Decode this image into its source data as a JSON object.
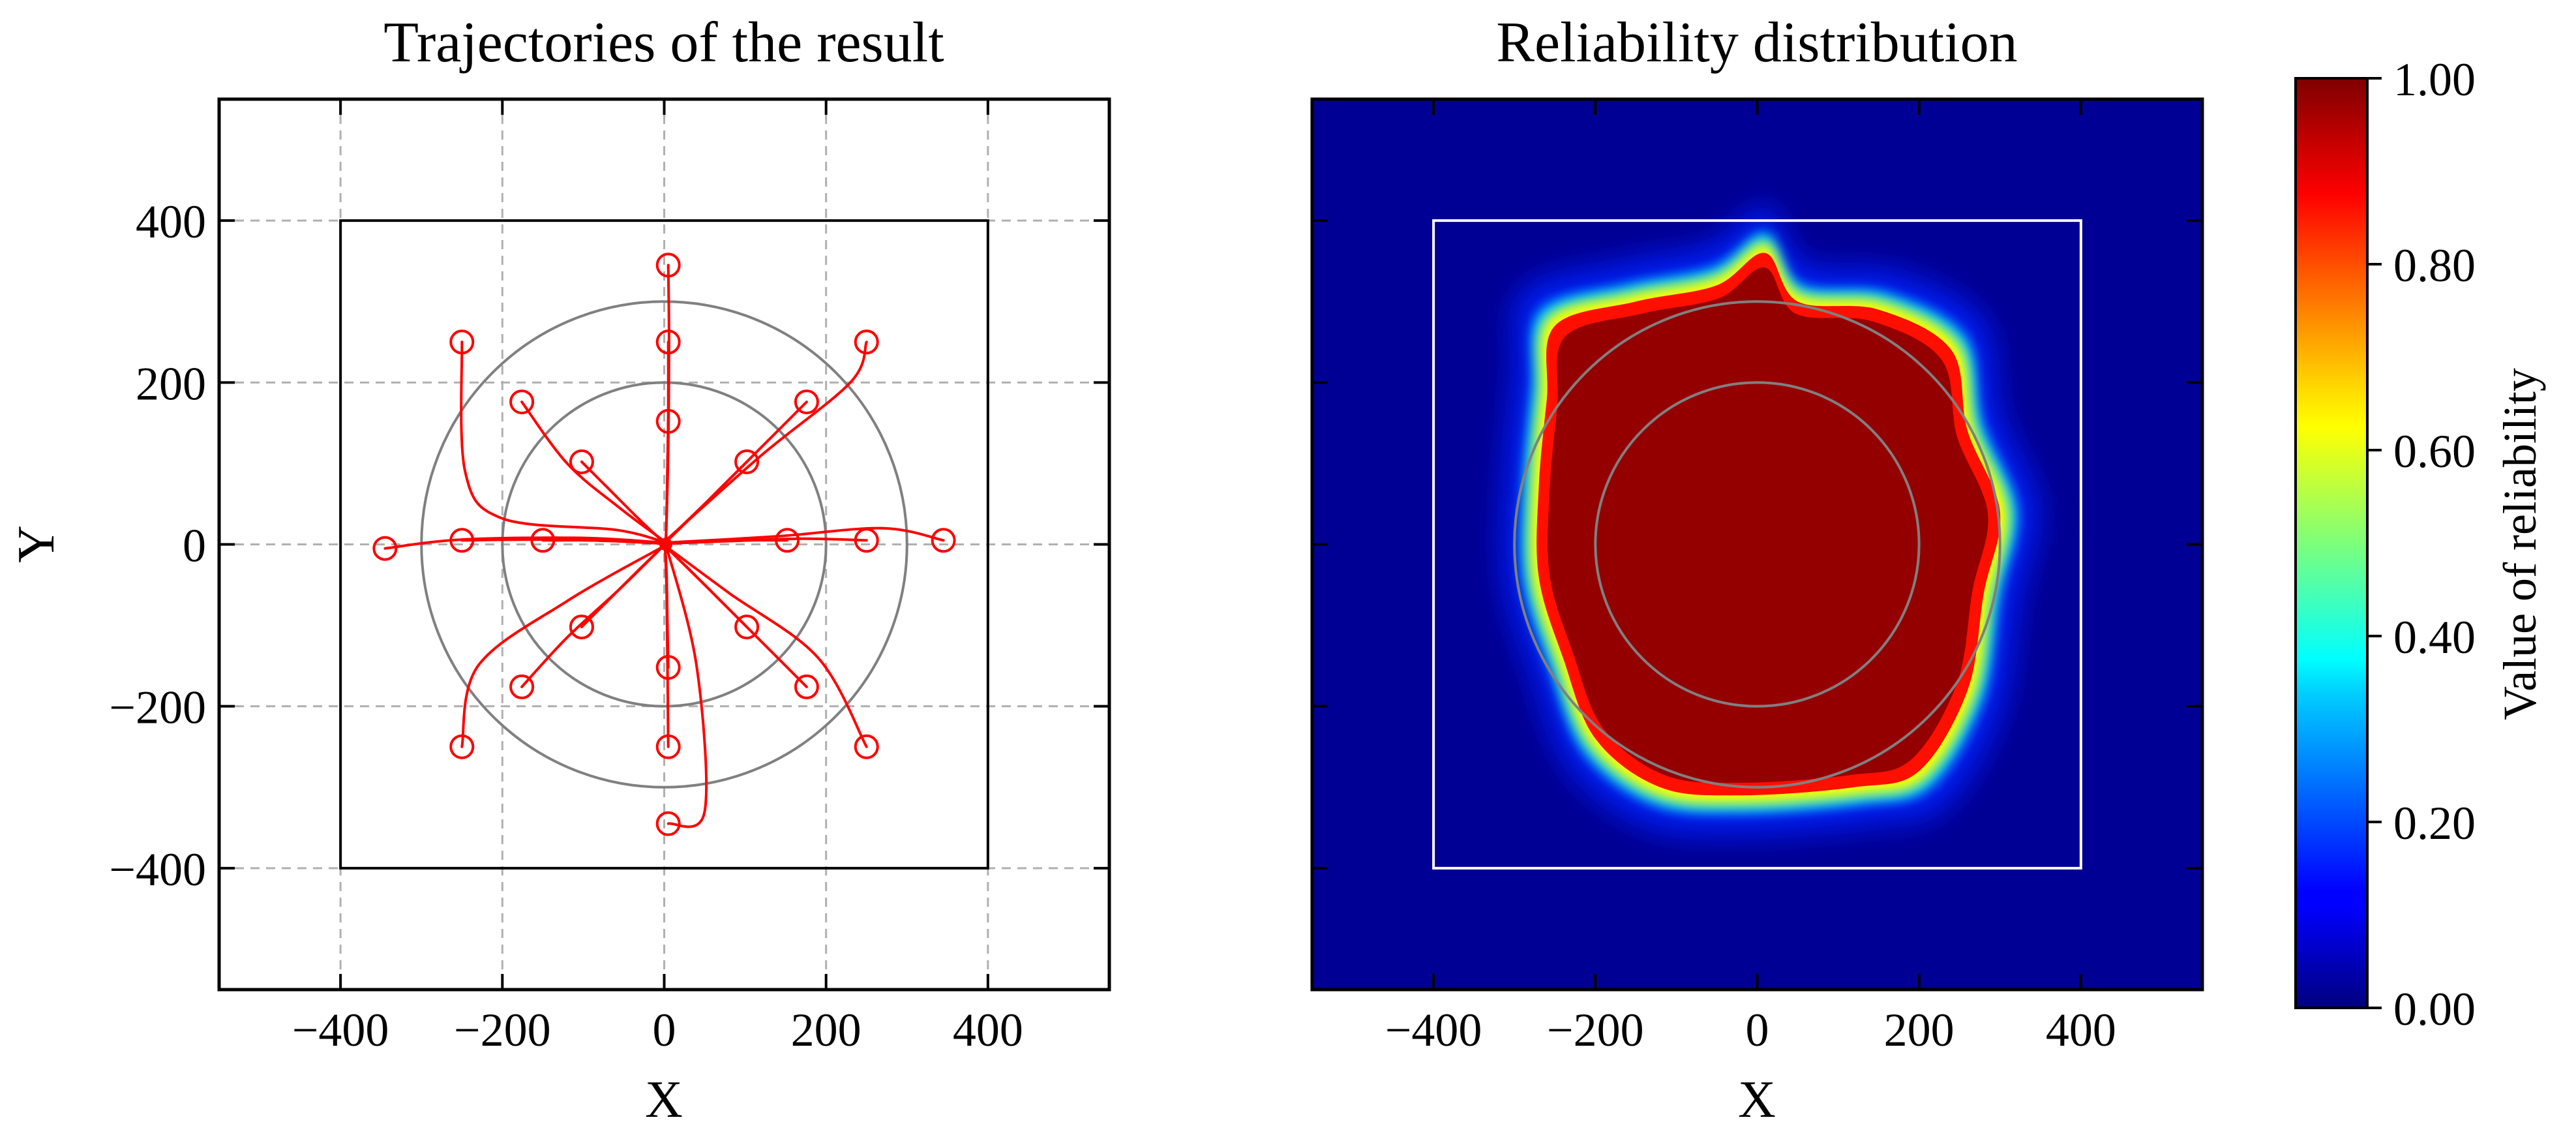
{
  "chart_data": [
    {
      "type": "line",
      "title": "Trajectories of the result",
      "xlabel": "X",
      "ylabel": "Y",
      "xlim": [
        -550,
        550
      ],
      "ylim": [
        -550,
        550
      ],
      "xticks": [
        -400,
        -200,
        0,
        200,
        400
      ],
      "yticks": [
        -400,
        -200,
        0,
        200,
        400
      ],
      "x_tick_labels": [
        "−400",
        "−200",
        "0",
        "200",
        "400"
      ],
      "y_tick_labels": [
        "−400",
        "−200",
        "0",
        "200",
        "400"
      ],
      "grid": "dashed",
      "boundary_square": {
        "xmin": -400,
        "xmax": 400,
        "ymin": -400,
        "ymax": 400
      },
      "reference_circles": [
        {
          "cx": 0,
          "cy": 0,
          "r": 200
        },
        {
          "cx": 0,
          "cy": 0,
          "r": 300
        }
      ],
      "series": [
        {
          "points": [
            [
              5,
              345
            ],
            [
              6,
              250
            ],
            [
              5,
              120
            ],
            [
              2,
              0
            ]
          ]
        },
        {
          "points": [
            [
              5,
              250
            ],
            [
              5,
              170
            ],
            [
              4,
              80
            ],
            [
              2,
              0
            ]
          ]
        },
        {
          "points": [
            [
              5,
              152
            ],
            [
              4,
              100
            ],
            [
              3,
              40
            ],
            [
              2,
              0
            ]
          ]
        },
        {
          "points": [
            [
              -250,
              250
            ],
            [
              -246,
              90
            ],
            [
              -200,
              32
            ],
            [
              -60,
              18
            ],
            [
              0,
              3
            ]
          ]
        },
        {
          "points": [
            [
              -176,
              176
            ],
            [
              -120,
              100
            ],
            [
              -55,
              45
            ],
            [
              0,
              4
            ]
          ]
        },
        {
          "points": [
            [
              -102,
              102
            ],
            [
              -70,
              70
            ],
            [
              -30,
              30
            ],
            [
              0,
              2
            ]
          ]
        },
        {
          "points": [
            [
              -345,
              -5
            ],
            [
              -250,
              6
            ],
            [
              -100,
              8
            ],
            [
              0,
              2
            ]
          ]
        },
        {
          "points": [
            [
              -250,
              5
            ],
            [
              -150,
              6
            ],
            [
              -60,
              4
            ],
            [
              0,
              1
            ]
          ]
        },
        {
          "points": [
            [
              -150,
              5
            ],
            [
              -90,
              5
            ],
            [
              -40,
              3
            ],
            [
              0,
              1
            ]
          ]
        },
        {
          "points": [
            [
              345,
              5
            ],
            [
              270,
              20
            ],
            [
              140,
              10
            ],
            [
              0,
              2
            ]
          ]
        },
        {
          "points": [
            [
              250,
              5
            ],
            [
              170,
              7
            ],
            [
              80,
              4
            ],
            [
              0,
              1
            ]
          ]
        },
        {
          "points": [
            [
              152,
              5
            ],
            [
              100,
              5
            ],
            [
              45,
              3
            ],
            [
              0,
              1
            ]
          ]
        },
        {
          "points": [
            [
              250,
              250
            ],
            [
              230,
              200
            ],
            [
              120,
              110
            ],
            [
              0,
              3
            ]
          ]
        },
        {
          "points": [
            [
              176,
              176
            ],
            [
              120,
              120
            ],
            [
              55,
              55
            ],
            [
              0,
              2
            ]
          ]
        },
        {
          "points": [
            [
              102,
              102
            ],
            [
              70,
              70
            ],
            [
              30,
              30
            ],
            [
              0,
              1
            ]
          ]
        },
        {
          "points": [
            [
              -250,
              -250
            ],
            [
              -230,
              -150
            ],
            [
              -120,
              -70
            ],
            [
              0,
              -2
            ]
          ]
        },
        {
          "points": [
            [
              -176,
              -176
            ],
            [
              -120,
              -115
            ],
            [
              -55,
              -55
            ],
            [
              0,
              -1
            ]
          ]
        },
        {
          "points": [
            [
              -102,
              -102
            ],
            [
              -70,
              -70
            ],
            [
              -30,
              -30
            ],
            [
              0,
              -1
            ]
          ]
        },
        {
          "points": [
            [
              5,
              -345
            ],
            [
              50,
              -330
            ],
            [
              40,
              -150
            ],
            [
              2,
              0
            ]
          ]
        },
        {
          "points": [
            [
              5,
              -250
            ],
            [
              4,
              -150
            ],
            [
              3,
              -60
            ],
            [
              1,
              0
            ]
          ]
        },
        {
          "points": [
            [
              5,
              -152
            ],
            [
              4,
              -100
            ],
            [
              3,
              -40
            ],
            [
              1,
              0
            ]
          ]
        },
        {
          "points": [
            [
              250,
              -250
            ],
            [
              190,
              -140
            ],
            [
              80,
              -60
            ],
            [
              0,
              -1
            ]
          ]
        },
        {
          "points": [
            [
              176,
              -176
            ],
            [
              120,
              -120
            ],
            [
              55,
              -55
            ],
            [
              0,
              -1
            ]
          ]
        },
        {
          "points": [
            [
              102,
              -102
            ],
            [
              70,
              -70
            ],
            [
              30,
              -30
            ],
            [
              0,
              -1
            ]
          ]
        }
      ],
      "start_markers": [
        [
          5,
          345
        ],
        [
          5,
          250
        ],
        [
          5,
          152
        ],
        [
          -250,
          250
        ],
        [
          -176,
          176
        ],
        [
          -102,
          102
        ],
        [
          -345,
          -5
        ],
        [
          -250,
          5
        ],
        [
          -150,
          5
        ],
        [
          345,
          5
        ],
        [
          250,
          5
        ],
        [
          152,
          5
        ],
        [
          250,
          250
        ],
        [
          176,
          176
        ],
        [
          102,
          102
        ],
        [
          -250,
          -250
        ],
        [
          -176,
          -176
        ],
        [
          -102,
          -102
        ],
        [
          5,
          -345
        ],
        [
          5,
          -250
        ],
        [
          5,
          -152
        ],
        [
          250,
          -250
        ],
        [
          176,
          -176
        ],
        [
          102,
          -102
        ]
      ],
      "colors": {
        "trajectory": "#ff0000",
        "circle": "#808080",
        "grid": "#b0b0b0"
      }
    },
    {
      "type": "heatmap",
      "title": "Reliability distribution",
      "xlabel": "X",
      "xlim": [
        -550,
        550
      ],
      "ylim": [
        -550,
        550
      ],
      "xticks": [
        -400,
        -200,
        0,
        200,
        400
      ],
      "x_tick_labels": [
        "−400",
        "−200",
        "0",
        "200",
        "400"
      ],
      "grid": "off",
      "colormap": "jet",
      "background_value": 0.02,
      "high_region_value": 0.98,
      "high_region_boundary": [
        [
          -250,
          270
        ],
        [
          -150,
          300
        ],
        [
          -50,
          320
        ],
        [
          10,
          360
        ],
        [
          50,
          300
        ],
        [
          150,
          290
        ],
        [
          240,
          240
        ],
        [
          260,
          140
        ],
        [
          300,
          40
        ],
        [
          280,
          -60
        ],
        [
          260,
          -180
        ],
        [
          200,
          -280
        ],
        [
          120,
          -300
        ],
        [
          -20,
          -310
        ],
        [
          -120,
          -300
        ],
        [
          -200,
          -240
        ],
        [
          -240,
          -140
        ],
        [
          -270,
          -40
        ],
        [
          -270,
          70
        ],
        [
          -260,
          180
        ]
      ],
      "boundary_square": {
        "xmin": -400,
        "xmax": 400,
        "ymin": -400,
        "ymax": 400
      },
      "reference_circles": [
        {
          "cx": 0,
          "cy": 0,
          "r": 200
        },
        {
          "cx": 0,
          "cy": 0,
          "r": 300
        }
      ],
      "colorbar": {
        "label": "Value of reliability",
        "range": [
          0,
          1
        ],
        "ticks": [
          0,
          0.2,
          0.4,
          0.6,
          0.8,
          1.0
        ],
        "tick_labels": [
          "0.00",
          "0.20",
          "0.40",
          "0.60",
          "0.80",
          "1.00"
        ]
      }
    }
  ]
}
